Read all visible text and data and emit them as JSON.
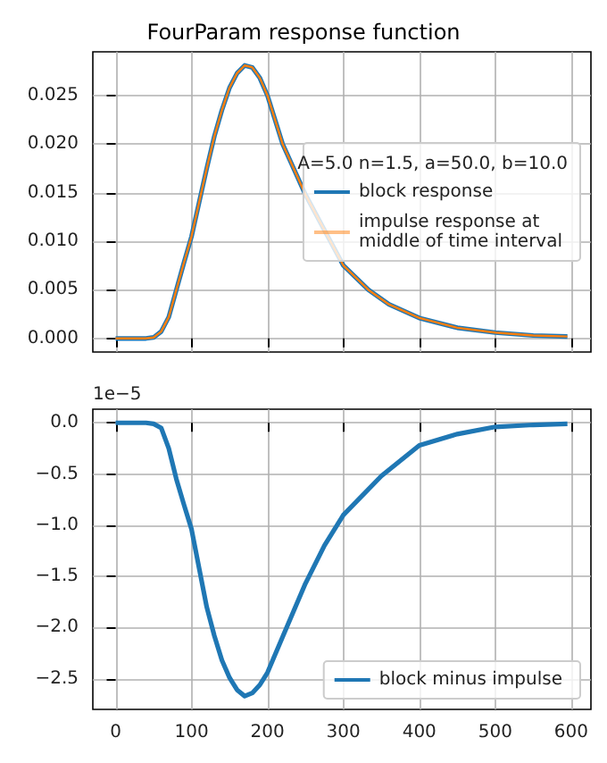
{
  "chart_data": [
    {
      "type": "line",
      "title": "FourParam response function",
      "legend_title": "A=5.0 n=1.5, a=50.0, b=10.0",
      "legend": "right",
      "grid": true,
      "tick_labels": "y",
      "x": [
        0,
        20,
        40,
        50,
        60,
        70,
        80,
        90,
        100,
        110,
        120,
        130,
        140,
        150,
        160,
        170,
        180,
        190,
        200,
        220,
        250,
        300,
        333,
        360,
        400,
        450,
        500,
        550,
        595
      ],
      "xlim": [
        -30,
        626
      ],
      "xticks": [
        0,
        100,
        200,
        300,
        400,
        500,
        600
      ],
      "ylim": [
        -0.0014,
        0.0295
      ],
      "yticks": [
        {
          "value": 0,
          "label": "0.000"
        },
        {
          "value": 0.005,
          "label": "0.005"
        },
        {
          "value": 0.01,
          "label": "0.010"
        },
        {
          "value": 0.015,
          "label": "0.015"
        },
        {
          "value": 0.02,
          "label": "0.020"
        },
        {
          "value": 0.025,
          "label": "0.025"
        }
      ],
      "series": [
        {
          "name": "block response",
          "color": "#1f77b4",
          "values": [
            0,
            0,
            0,
            0.0001,
            0.0007,
            0.0022,
            0.005,
            0.0078,
            0.0105,
            0.014,
            0.0175,
            0.0208,
            0.0235,
            0.0258,
            0.0273,
            0.0281,
            0.0279,
            0.0268,
            0.025,
            0.02,
            0.0148,
            0.0075,
            0.005,
            0.0035,
            0.0021,
            0.0011,
            0.0006,
            0.0003,
            0.0002
          ]
        },
        {
          "name": "impulse response at\nmiddle of time interval",
          "color": "#ff7f0e",
          "values": [
            0,
            0,
            0,
            0.0001,
            0.0007,
            0.0022,
            0.005,
            0.0078,
            0.0105,
            0.014,
            0.0175,
            0.0208,
            0.0235,
            0.0258,
            0.0273,
            0.0281,
            0.0279,
            0.0268,
            0.025,
            0.02,
            0.0148,
            0.0075,
            0.005,
            0.0035,
            0.0021,
            0.0011,
            0.0006,
            0.0003,
            0.0002
          ]
        }
      ]
    },
    {
      "type": "line",
      "legend": "bottom right",
      "grid": true,
      "annotations": [
        "1e−5"
      ],
      "x": [
        0,
        20,
        40,
        50,
        60,
        70,
        80,
        90,
        100,
        110,
        120,
        130,
        140,
        150,
        160,
        170,
        180,
        190,
        200,
        220,
        250,
        275,
        300,
        350,
        400,
        450,
        500,
        550,
        595
      ],
      "xlim": [
        -30,
        626
      ],
      "xticks": [
        0,
        100,
        200,
        300,
        400,
        500,
        600
      ],
      "ylim": [
        -2.8,
        0.133
      ],
      "yticks": [
        {
          "value": -2.5,
          "label": "−2.5"
        },
        {
          "value": -2.0,
          "label": "−2.0"
        },
        {
          "value": -1.5,
          "label": "−1.5"
        },
        {
          "value": -1.0,
          "label": "−1.0"
        },
        {
          "value": -0.5,
          "label": "−0.5"
        },
        {
          "value": 0,
          "label": "0.0"
        }
      ],
      "series": [
        {
          "name": "block minus impulse",
          "color": "#1f77b4",
          "values": [
            0,
            0,
            0,
            -0.01,
            -0.05,
            -0.25,
            -0.55,
            -0.8,
            -1.04,
            -1.42,
            -1.8,
            -2.08,
            -2.32,
            -2.49,
            -2.61,
            -2.67,
            -2.64,
            -2.56,
            -2.44,
            -2.09,
            -1.57,
            -1.2,
            -0.9,
            -0.52,
            -0.22,
            -0.11,
            -0.04,
            -0.02,
            -0.01
          ]
        }
      ]
    }
  ]
}
